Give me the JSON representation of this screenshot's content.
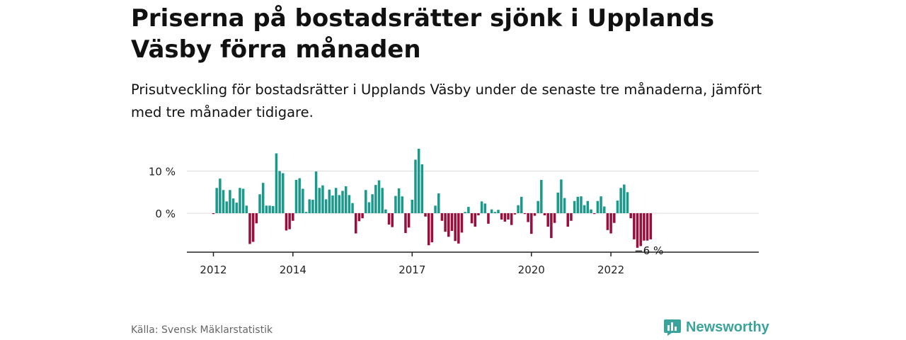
{
  "title": "Priserna på bostadsrätter sjönk i Upplands Väsby förra månaden",
  "subtitle": "Prisutveckling för bostadsrätter i Upplands Väsby under de senaste tre månaderna, jämfört med tre månader tidigare.",
  "source": "Källa: Svensk Mäklarstatistik",
  "brand": "Newsworthy",
  "colors": {
    "positive": "#1a9a8c",
    "negative": "#9b0d3a",
    "grid": "#dddddd",
    "axis": "#222222",
    "brand": "#3aa39b"
  },
  "chart_data": {
    "type": "bar",
    "y_ticks": [
      {
        "value": 10,
        "label": "10 %"
      },
      {
        "value": 0,
        "label": "0 %"
      }
    ],
    "x_ticks": [
      {
        "index": 0,
        "label": "2012"
      },
      {
        "index": 24,
        "label": "2014"
      },
      {
        "index": 60,
        "label": "2017"
      },
      {
        "index": 96,
        "label": "2020"
      },
      {
        "index": 120,
        "label": "2022"
      }
    ],
    "ylim": [
      -9,
      16
    ],
    "grid": true,
    "end_label": "−6 %",
    "unit": "%",
    "values": [
      -0.2,
      6,
      8.2,
      5.5,
      2.8,
      5.5,
      3.5,
      2.5,
      6,
      5.8,
      1.8,
      -7.3,
      -6.8,
      -2.4,
      4.5,
      7.2,
      1.8,
      1.8,
      1.7,
      14.2,
      10,
      9.5,
      -4.1,
      -3.8,
      -1.8,
      7.9,
      8.3,
      5.8,
      0.3,
      3.3,
      3.2,
      9.9,
      6,
      6.6,
      3.3,
      5.6,
      4.2,
      6,
      4.3,
      5.3,
      6.4,
      4.3,
      2.4,
      -4.8,
      -1.9,
      -1.2,
      5.5,
      2.6,
      4.5,
      6.7,
      7.8,
      6,
      0.9,
      -2.7,
      -3.3,
      4.1,
      5.9,
      4,
      -4.7,
      -3.4,
      3.2,
      12.7,
      15.3,
      11.6,
      -0.8,
      -7.6,
      -6.9,
      1.8,
      4.7,
      -1.8,
      -4.4,
      -5.6,
      -4.2,
      -6.6,
      -7.2,
      -4.6,
      0.3,
      1.5,
      -2.4,
      -3.2,
      -0.5,
      2.8,
      2.3,
      -2.5,
      0.9,
      0.3,
      0.8,
      -1.5,
      -2,
      -1.5,
      -2.8,
      -0.3,
      1.9,
      3.9,
      -0.2,
      -2.1,
      -4.9,
      -0.6,
      2.9,
      7.9,
      -0.5,
      -3.2,
      -5.9,
      -2.3,
      4.9,
      8,
      3.6,
      -3.2,
      -1.8,
      2.9,
      3.9,
      4,
      1.9,
      2.9,
      0.9,
      -0.2,
      2.9,
      4,
      1.6,
      -4,
      -4.8,
      -2.3,
      3,
      6,
      6.8,
      5,
      -1.2,
      -6.2,
      -8.2,
      -7.8,
      -6.5,
      -6.5,
      -6.2
    ]
  }
}
